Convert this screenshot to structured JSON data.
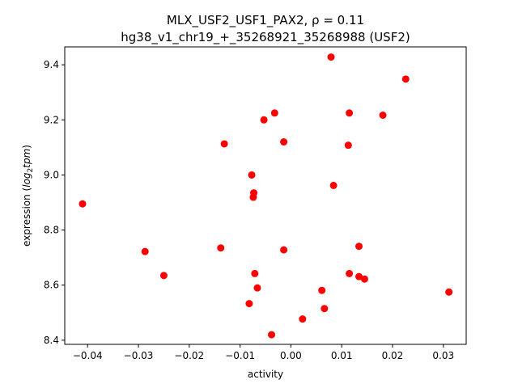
{
  "chart_data": {
    "type": "scatter",
    "title_line1": "MLX_USF2_USF1_PAX2, ρ = 0.11",
    "title_line2": "hg38_v1_chr19_+_35268921_35268988 (USF2)",
    "xlabel": "activity",
    "ylabel_prefix": "expression (",
    "ylabel_math": "log",
    "ylabel_sub": "2",
    "ylabel_tail": "tpm",
    "ylabel_suffix": ")",
    "xlim": [
      -0.0445,
      0.0345
    ],
    "ylim": [
      8.385,
      9.465
    ],
    "x_ticks": [
      -0.04,
      -0.03,
      -0.02,
      -0.01,
      0.0,
      0.01,
      0.02,
      0.03
    ],
    "x_tick_labels": [
      "−0.04",
      "−0.03",
      "−0.02",
      "−0.01",
      "0.00",
      "0.01",
      "0.02",
      "0.03"
    ],
    "y_ticks": [
      8.4,
      8.6,
      8.8,
      9.0,
      9.2,
      9.4
    ],
    "y_tick_labels": [
      "8.4",
      "8.6",
      "8.8",
      "9.0",
      "9.2",
      "9.4"
    ],
    "marker_color": "#ff0000",
    "grid": false,
    "points": [
      {
        "x": -0.041,
        "y": 8.895
      },
      {
        "x": -0.0287,
        "y": 8.722
      },
      {
        "x": -0.025,
        "y": 8.635
      },
      {
        "x": -0.0138,
        "y": 8.735
      },
      {
        "x": -0.0131,
        "y": 9.113
      },
      {
        "x": -0.0082,
        "y": 8.533
      },
      {
        "x": -0.0077,
        "y": 9.0
      },
      {
        "x": -0.0073,
        "y": 8.935
      },
      {
        "x": -0.0074,
        "y": 8.919
      },
      {
        "x": -0.0071,
        "y": 8.642
      },
      {
        "x": -0.0066,
        "y": 8.59
      },
      {
        "x": -0.0053,
        "y": 9.2
      },
      {
        "x": -0.0038,
        "y": 8.42
      },
      {
        "x": -0.0032,
        "y": 9.225
      },
      {
        "x": -0.0014,
        "y": 9.12
      },
      {
        "x": -0.0014,
        "y": 8.728
      },
      {
        "x": 0.0023,
        "y": 8.477
      },
      {
        "x": 0.0061,
        "y": 8.581
      },
      {
        "x": 0.0066,
        "y": 8.515
      },
      {
        "x": 0.0079,
        "y": 9.428
      },
      {
        "x": 0.0084,
        "y": 8.962
      },
      {
        "x": 0.0113,
        "y": 9.108
      },
      {
        "x": 0.0115,
        "y": 9.225
      },
      {
        "x": 0.0115,
        "y": 8.642
      },
      {
        "x": 0.0134,
        "y": 8.741
      },
      {
        "x": 0.0134,
        "y": 8.631
      },
      {
        "x": 0.0145,
        "y": 8.622
      },
      {
        "x": 0.0181,
        "y": 9.217
      },
      {
        "x": 0.0226,
        "y": 9.348
      },
      {
        "x": 0.0311,
        "y": 8.575
      }
    ]
  }
}
